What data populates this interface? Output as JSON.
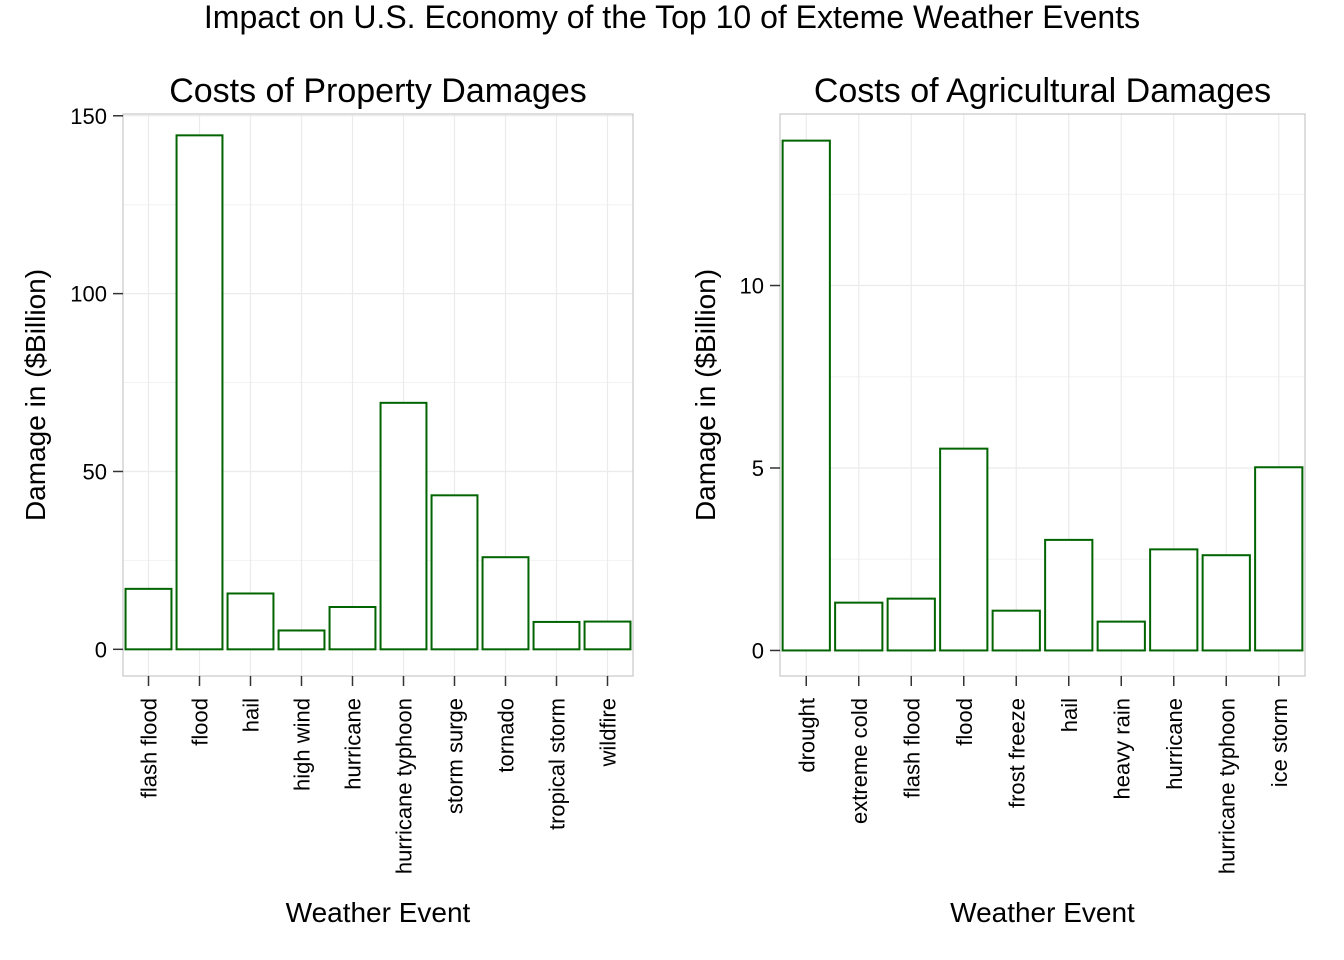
{
  "title": "Impact on U.S. Economy of the Top 10 of Exteme Weather Events",
  "colors": {
    "bar_stroke": "#006400",
    "bar_fill": "#ffffff",
    "grid": "#ebebeb",
    "panel_border": "#c8c8c8",
    "axis": "#333333"
  },
  "chart_data": [
    {
      "type": "bar",
      "title": "Costs of Property Damages",
      "xlabel": "Weather Event",
      "ylabel": "Damage in ($Billion)",
      "categories": [
        "flash flood",
        "flood",
        "hail",
        "high wind",
        "hurricane",
        "hurricane typhoon",
        "storm surge",
        "tornado",
        "tropical storm",
        "wildfire"
      ],
      "values": [
        17,
        144.5,
        15.7,
        5.3,
        11.9,
        69.3,
        43.3,
        25.9,
        7.7,
        7.8
      ],
      "yticks": [
        0,
        50,
        100,
        150
      ],
      "ylim": [
        -7.5,
        150.5
      ],
      "grid": true
    },
    {
      "type": "bar",
      "title": "Costs of Agricultural Damages",
      "xlabel": "Weather Event",
      "ylabel": "Damage in ($Billion)",
      "categories": [
        "drought",
        "extreme cold",
        "flash flood",
        "flood",
        "frost freeze",
        "hail",
        "heavy rain",
        "hurricane",
        "hurricane typhoon",
        "ice storm"
      ],
      "values": [
        13.97,
        1.31,
        1.42,
        5.53,
        1.09,
        3.03,
        0.79,
        2.77,
        2.61,
        5.02
      ],
      "yticks": [
        0,
        5,
        10
      ],
      "ylim": [
        -0.7,
        14.7
      ],
      "grid": true
    }
  ]
}
